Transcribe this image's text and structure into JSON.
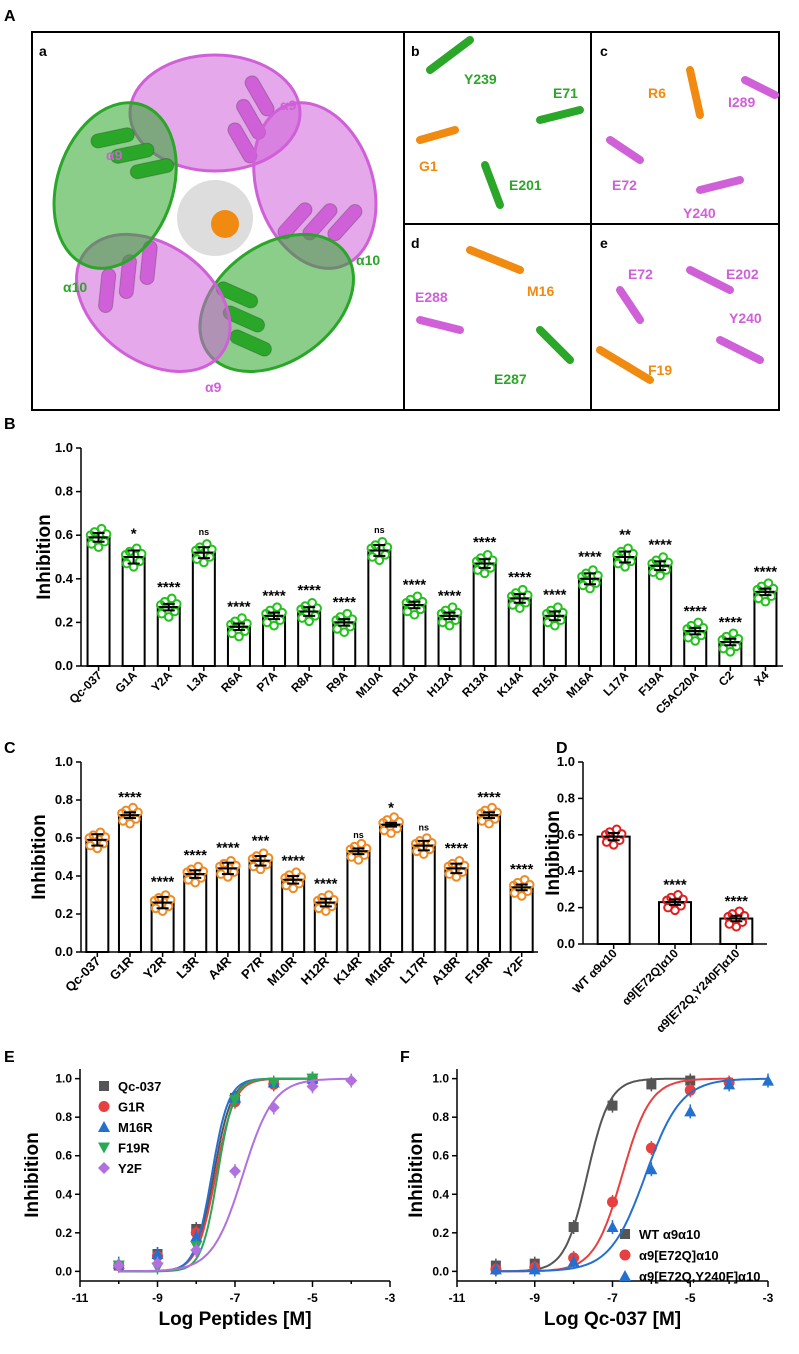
{
  "panel_labels": {
    "A": "A",
    "B": "B",
    "C": "C",
    "D": "D",
    "E": "E",
    "F": "F"
  },
  "structure": {
    "a": {
      "letter": "a",
      "labels": [
        "α9",
        "α9",
        "α10",
        "α10",
        "α9"
      ]
    },
    "b": {
      "letter": "b",
      "labels": [
        "Y239",
        "E71",
        "G1",
        "E201"
      ]
    },
    "c": {
      "letter": "c",
      "labels": [
        "R6",
        "I289",
        "E72",
        "Y240"
      ]
    },
    "d": {
      "letter": "d",
      "labels": [
        "M16",
        "E288",
        "E287"
      ]
    },
    "e": {
      "letter": "e",
      "labels": [
        "E72",
        "E202",
        "Y240",
        "F19"
      ]
    },
    "colors": {
      "alpha9": "#d060d8",
      "alpha10": "#2aa628",
      "peptide": "#f08a10"
    }
  },
  "chart_data": [
    {
      "id": "B",
      "type": "bar",
      "ylabel": "Inhibition",
      "ylim": [
        0,
        1.0
      ],
      "yticks": [
        "0.0",
        "0.2",
        "0.4",
        "0.6",
        "0.8",
        "1.0"
      ],
      "point_color": "#22c41c",
      "categories": [
        "Qc-037",
        "G1A",
        "Y2A",
        "L3A",
        "R6A",
        "P7A",
        "R8A",
        "R9A",
        "M10A",
        "R11A",
        "H12A",
        "R13A",
        "K14A",
        "R15A",
        "M16A",
        "L17A",
        "F19A",
        "C5AC20A",
        "C2",
        "X4"
      ],
      "values": [
        0.59,
        0.5,
        0.27,
        0.52,
        0.18,
        0.23,
        0.25,
        0.2,
        0.53,
        0.28,
        0.23,
        0.47,
        0.31,
        0.23,
        0.4,
        0.5,
        0.46,
        0.16,
        0.11,
        0.34
      ],
      "sem": [
        0.02,
        0.03,
        0.015,
        0.025,
        0.015,
        0.015,
        0.02,
        0.015,
        0.025,
        0.015,
        0.015,
        0.02,
        0.02,
        0.02,
        0.025,
        0.025,
        0.02,
        0.015,
        0.015,
        0.015
      ],
      "significance": [
        "",
        "*",
        "****",
        "ns",
        "****",
        "****",
        "****",
        "****",
        "ns",
        "****",
        "****",
        "****",
        "****",
        "****",
        "****",
        "**",
        "****",
        "****",
        "****",
        "****"
      ]
    },
    {
      "id": "C",
      "type": "bar",
      "ylabel": "Inhibition",
      "ylim": [
        0,
        1.0
      ],
      "yticks": [
        "0.0",
        "0.2",
        "0.4",
        "0.6",
        "0.8",
        "1.0"
      ],
      "point_color": "#f08a22",
      "categories": [
        "Qc-037",
        "G1R",
        "Y2R",
        "L3R",
        "A4R",
        "P7R",
        "M10R",
        "H12R",
        "K14R",
        "M16R",
        "L17R",
        "A18R",
        "F19R",
        "Y2F"
      ],
      "values": [
        0.59,
        0.72,
        0.26,
        0.41,
        0.44,
        0.48,
        0.38,
        0.26,
        0.53,
        0.67,
        0.56,
        0.44,
        0.72,
        0.34
      ],
      "sem": [
        0.03,
        0.015,
        0.03,
        0.02,
        0.03,
        0.025,
        0.02,
        0.02,
        0.015,
        0.01,
        0.025,
        0.025,
        0.015,
        0.015
      ],
      "significance": [
        "",
        "****",
        "****",
        "****",
        "****",
        "***",
        "****",
        "****",
        "ns",
        "*",
        "ns",
        "****",
        "****",
        "****"
      ]
    },
    {
      "id": "D",
      "type": "bar",
      "ylabel": "Inhibition",
      "ylim": [
        0,
        1.0
      ],
      "yticks": [
        "0.0",
        "0.2",
        "0.4",
        "0.6",
        "0.8",
        "1.0"
      ],
      "point_color": "#e02020",
      "categories": [
        "WT α9α10",
        "α9[E72Q]α10",
        "α9[E72Q,Y240F]α10"
      ],
      "values": [
        0.59,
        0.23,
        0.14
      ],
      "sem": [
        0.02,
        0.015,
        0.015
      ],
      "significance": [
        "",
        "****",
        "****"
      ]
    },
    {
      "id": "E",
      "type": "line",
      "xlabel": "Log Peptides [M]",
      "ylabel": "Inhibition",
      "xlim": [
        -11,
        -3
      ],
      "ylim": [
        -0.05,
        1.05
      ],
      "xticks": [
        "-11",
        "-9",
        "-7",
        "-5",
        "-3"
      ],
      "yticks": [
        "0.0",
        "0.2",
        "0.4",
        "0.6",
        "0.8",
        "1.0"
      ],
      "legend_position": "top-left",
      "series": [
        {
          "name": "Qc-037",
          "color": "#555555",
          "marker": "square",
          "logIC50": -7.55,
          "hill": 1.9,
          "x": [
            -10,
            -9,
            -8,
            -7,
            -6,
            -5
          ],
          "y": [
            0.03,
            0.09,
            0.22,
            0.9,
            0.98,
            1.0
          ]
        },
        {
          "name": "G1R",
          "color": "#e84040",
          "marker": "circle",
          "logIC50": -7.5,
          "hill": 1.8,
          "x": [
            -10,
            -9,
            -8,
            -7,
            -6,
            -5
          ],
          "y": [
            0.03,
            0.08,
            0.2,
            0.88,
            0.97,
            0.99
          ]
        },
        {
          "name": "M16R",
          "color": "#2470d0",
          "marker": "triangle",
          "logIC50": -7.6,
          "hill": 2.0,
          "x": [
            -10,
            -9,
            -8,
            -7,
            -6,
            -5
          ],
          "y": [
            0.04,
            0.09,
            0.18,
            0.9,
            0.98,
            1.0
          ]
        },
        {
          "name": "F19R",
          "color": "#2aa855",
          "marker": "triangle-down",
          "logIC50": -7.45,
          "hill": 2.1,
          "x": [
            -10,
            -9,
            -8,
            -7,
            -6,
            -5
          ],
          "y": [
            0.03,
            0.02,
            0.13,
            0.89,
            0.98,
            1.0
          ]
        },
        {
          "name": "Y2F",
          "color": "#b070e0",
          "marker": "diamond",
          "logIC50": -6.8,
          "hill": 1.1,
          "x": [
            -10,
            -9,
            -8,
            -7,
            -6,
            -5,
            -4
          ],
          "y": [
            0.03,
            0.04,
            0.11,
            0.52,
            0.85,
            0.96,
            0.99
          ]
        }
      ]
    },
    {
      "id": "F",
      "type": "line",
      "xlabel": "Log Qc-037 [M]",
      "ylabel": "Inhibition",
      "xlim": [
        -11,
        -3
      ],
      "ylim": [
        -0.05,
        1.05
      ],
      "xticks": [
        "-11",
        "-9",
        "-7",
        "-5",
        "-3"
      ],
      "yticks": [
        "0.0",
        "0.2",
        "0.4",
        "0.6",
        "0.8",
        "1.0"
      ],
      "legend_position": "bottom-right",
      "series": [
        {
          "name": "WT α9α10",
          "color": "#555555",
          "marker": "square",
          "logIC50": -7.65,
          "hill": 1.5,
          "x": [
            -10,
            -9,
            -8,
            -7,
            -6,
            -5
          ],
          "y": [
            0.03,
            0.04,
            0.23,
            0.86,
            0.97,
            0.99
          ]
        },
        {
          "name": "α9[E72Q]α10",
          "color": "#e84040",
          "marker": "circle",
          "logIC50": -6.75,
          "hill": 1.2,
          "x": [
            -10,
            -9,
            -8,
            -7,
            -6,
            -5,
            -4
          ],
          "y": [
            0.01,
            0.02,
            0.07,
            0.36,
            0.64,
            0.94,
            0.98
          ]
        },
        {
          "name": "α9[E72Q,Y240F]α10",
          "color": "#2470d0",
          "marker": "triangle",
          "logIC50": -6.15,
          "hill": 0.95,
          "x": [
            -10,
            -9,
            -8,
            -7,
            -6,
            -5,
            -4,
            -3
          ],
          "y": [
            0.01,
            0.01,
            0.05,
            0.23,
            0.53,
            0.83,
            0.97,
            0.99
          ]
        }
      ]
    }
  ]
}
